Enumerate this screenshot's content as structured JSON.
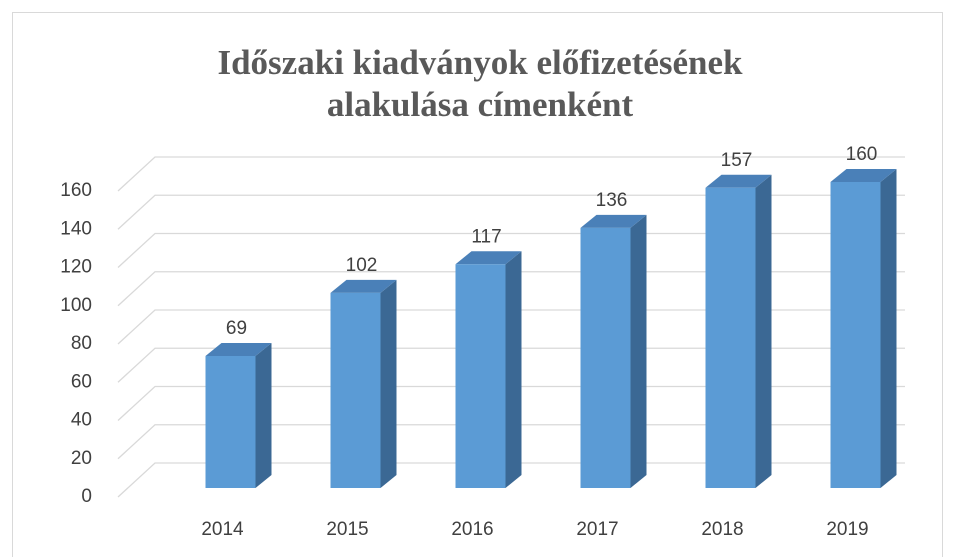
{
  "chart_data": {
    "type": "bar3d",
    "title": "Időszaki kiadványok előfizetésének alakulása címenként",
    "categories": [
      "2014",
      "2015",
      "2016",
      "2017",
      "2018",
      "2019"
    ],
    "values": [
      69,
      102,
      117,
      136,
      157,
      160
    ],
    "color": "#5b9bd5",
    "ylim": [
      0,
      160
    ],
    "yticks": [
      0,
      20,
      40,
      60,
      80,
      100,
      120,
      140,
      160
    ],
    "grid": true
  }
}
